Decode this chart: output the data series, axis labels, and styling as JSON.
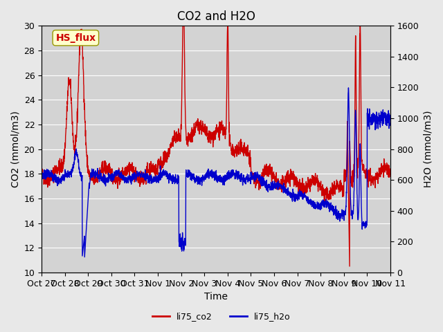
{
  "title": "CO2 and H2O",
  "xlabel": "Time",
  "ylabel_left": "CO2 (mmol/m3)",
  "ylabel_right": "H2O (mmol/m3)",
  "ylim_left": [
    10,
    30
  ],
  "ylim_right": [
    0,
    1600
  ],
  "yticks_left": [
    10,
    12,
    14,
    16,
    18,
    20,
    22,
    24,
    26,
    28,
    30
  ],
  "yticks_right": [
    0,
    200,
    400,
    600,
    800,
    1000,
    1200,
    1400,
    1600
  ],
  "xtick_labels": [
    "Oct 27",
    "Oct 28",
    "Oct 29",
    "Oct 30",
    "Oct 31",
    "Nov 1",
    "Nov 2",
    "Nov 3",
    "Nov 4",
    "Nov 5",
    "Nov 6",
    "Nov 7",
    "Nov 8",
    "Nov 9",
    "Nov 10",
    "Nov 11"
  ],
  "co2_color": "#cc0000",
  "h2o_color": "#0000cc",
  "bg_color": "#e8e8e8",
  "plot_bg_color": "#d8d8d8",
  "annotation_text": "HS_flux",
  "annotation_color": "#cc0000",
  "annotation_bg": "#ffffcc",
  "legend_entries": [
    "li75_co2",
    "li75_h2o"
  ],
  "line_width": 1.0,
  "title_fontsize": 12,
  "axis_label_fontsize": 10,
  "tick_fontsize": 9
}
